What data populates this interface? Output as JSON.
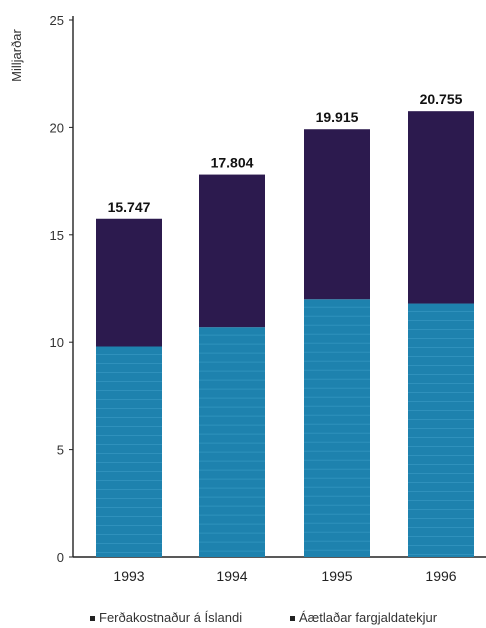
{
  "chart_data": {
    "type": "bar",
    "stacked": true,
    "ylabel": "Milljarðar",
    "xlabel": "",
    "ylim": [
      0,
      25
    ],
    "yticks": [
      0,
      5,
      10,
      15,
      20,
      25
    ],
    "categories": [
      "1993",
      "1994",
      "1995",
      "1996"
    ],
    "series": [
      {
        "name": "Ferðakostnaður á Íslandi",
        "color": "#1e82ae",
        "values": [
          9.8,
          10.7,
          12.0,
          11.8
        ]
      },
      {
        "name": "Áætlaðar fargjaldatekjur",
        "color": "#2c1a4e",
        "values": [
          5.947,
          7.104,
          7.915,
          8.955
        ]
      }
    ],
    "totals": [
      "15.747",
      "17.804",
      "19.915",
      "20.755"
    ],
    "grid": false,
    "legend_position": "bottom"
  }
}
